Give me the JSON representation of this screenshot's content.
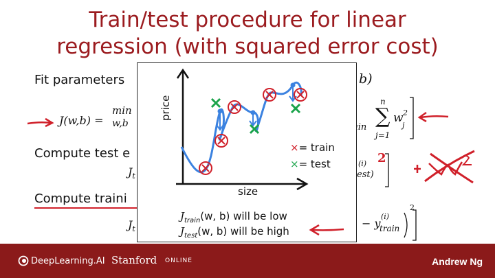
{
  "slide": {
    "title_line1": "Train/test procedure for linear",
    "title_line2": "regression (with squared error cost)",
    "fit_label": "Fit parameters",
    "fit_tail": "b)",
    "cost_prefix": "J(w,b) =",
    "min_label": "min",
    "min_sub": "w,b",
    "sum_upper": "n",
    "sum_lower": "j=1",
    "sum_term": "w",
    "sum_term_sub": "j",
    "sum_term_sup": "2",
    "ain_fragment": "ain",
    "compute_test_label": "Compute test e",
    "test_j_fragment": "J",
    "test_j_sub": "t",
    "test_i_fragment": "(i)",
    "test_est_fragment": "est)",
    "compute_train_label": "Compute traini",
    "train_j_fragment": "J",
    "train_j_sub": "t",
    "train_y_fragment": "− y",
    "train_y_sup": "(i)",
    "train_y_sub": "train",
    "train_sq": "2",
    "handwritten_reg": "+ λw²",
    "red_two": "2"
  },
  "popup": {
    "ylabel": "price",
    "xlabel": "size",
    "legend_train_mark": "×",
    "legend_train_label": "= train",
    "legend_test_mark": "×",
    "legend_test_label": "= test",
    "jtrain_text": "J",
    "jtrain_sub": "train",
    "jtrain_args": "(w, b) will be low",
    "jtest_text": "J",
    "jtest_sub": "test",
    "jtest_args": "(w, b) will be high"
  },
  "footer": {
    "brand_left": "DeepLearning.AI",
    "brand_stanford": "Stanford",
    "brand_online": "ONLINE",
    "author": "Andrew Ng"
  },
  "colors": {
    "title": "#9b1b1f",
    "footer": "#8b1a1a",
    "ink_red": "#d0202a",
    "ink_green": "#1aa34a",
    "ink_blue": "#3b82e0"
  }
}
